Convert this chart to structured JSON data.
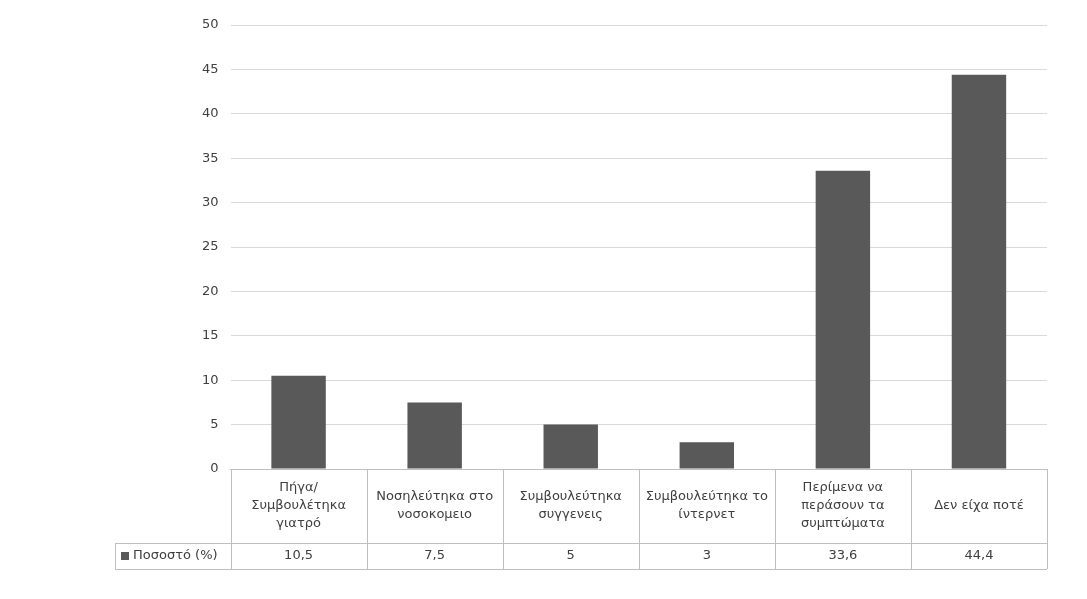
{
  "chart_data": {
    "type": "bar",
    "categories": [
      "Πήγα/ Συμβουλέτηκα γιατρό",
      "Νοσηλεύτηκα στο νοσοκομειο",
      "Συμβουλεύτηκα συγγενεις",
      "Συμβουλεύτηκα το ίντερνετ",
      "Περίμενα να περάσουν τα συμπτώματα",
      "Δεν είχα ποτέ"
    ],
    "series": [
      {
        "name": "Ποσοστό (%)",
        "color": "#595959",
        "values": [
          10.5,
          7.5,
          5,
          3,
          33.6,
          44.4
        ],
        "value_labels": [
          "10,5",
          "7,5",
          "5",
          "3",
          "33,6",
          "44,4"
        ]
      }
    ],
    "ylim": [
      0,
      50
    ],
    "yticks": [
      0,
      5,
      10,
      15,
      20,
      25,
      30,
      35,
      40,
      45,
      50
    ],
    "grid": "y",
    "legend": "bottom"
  }
}
